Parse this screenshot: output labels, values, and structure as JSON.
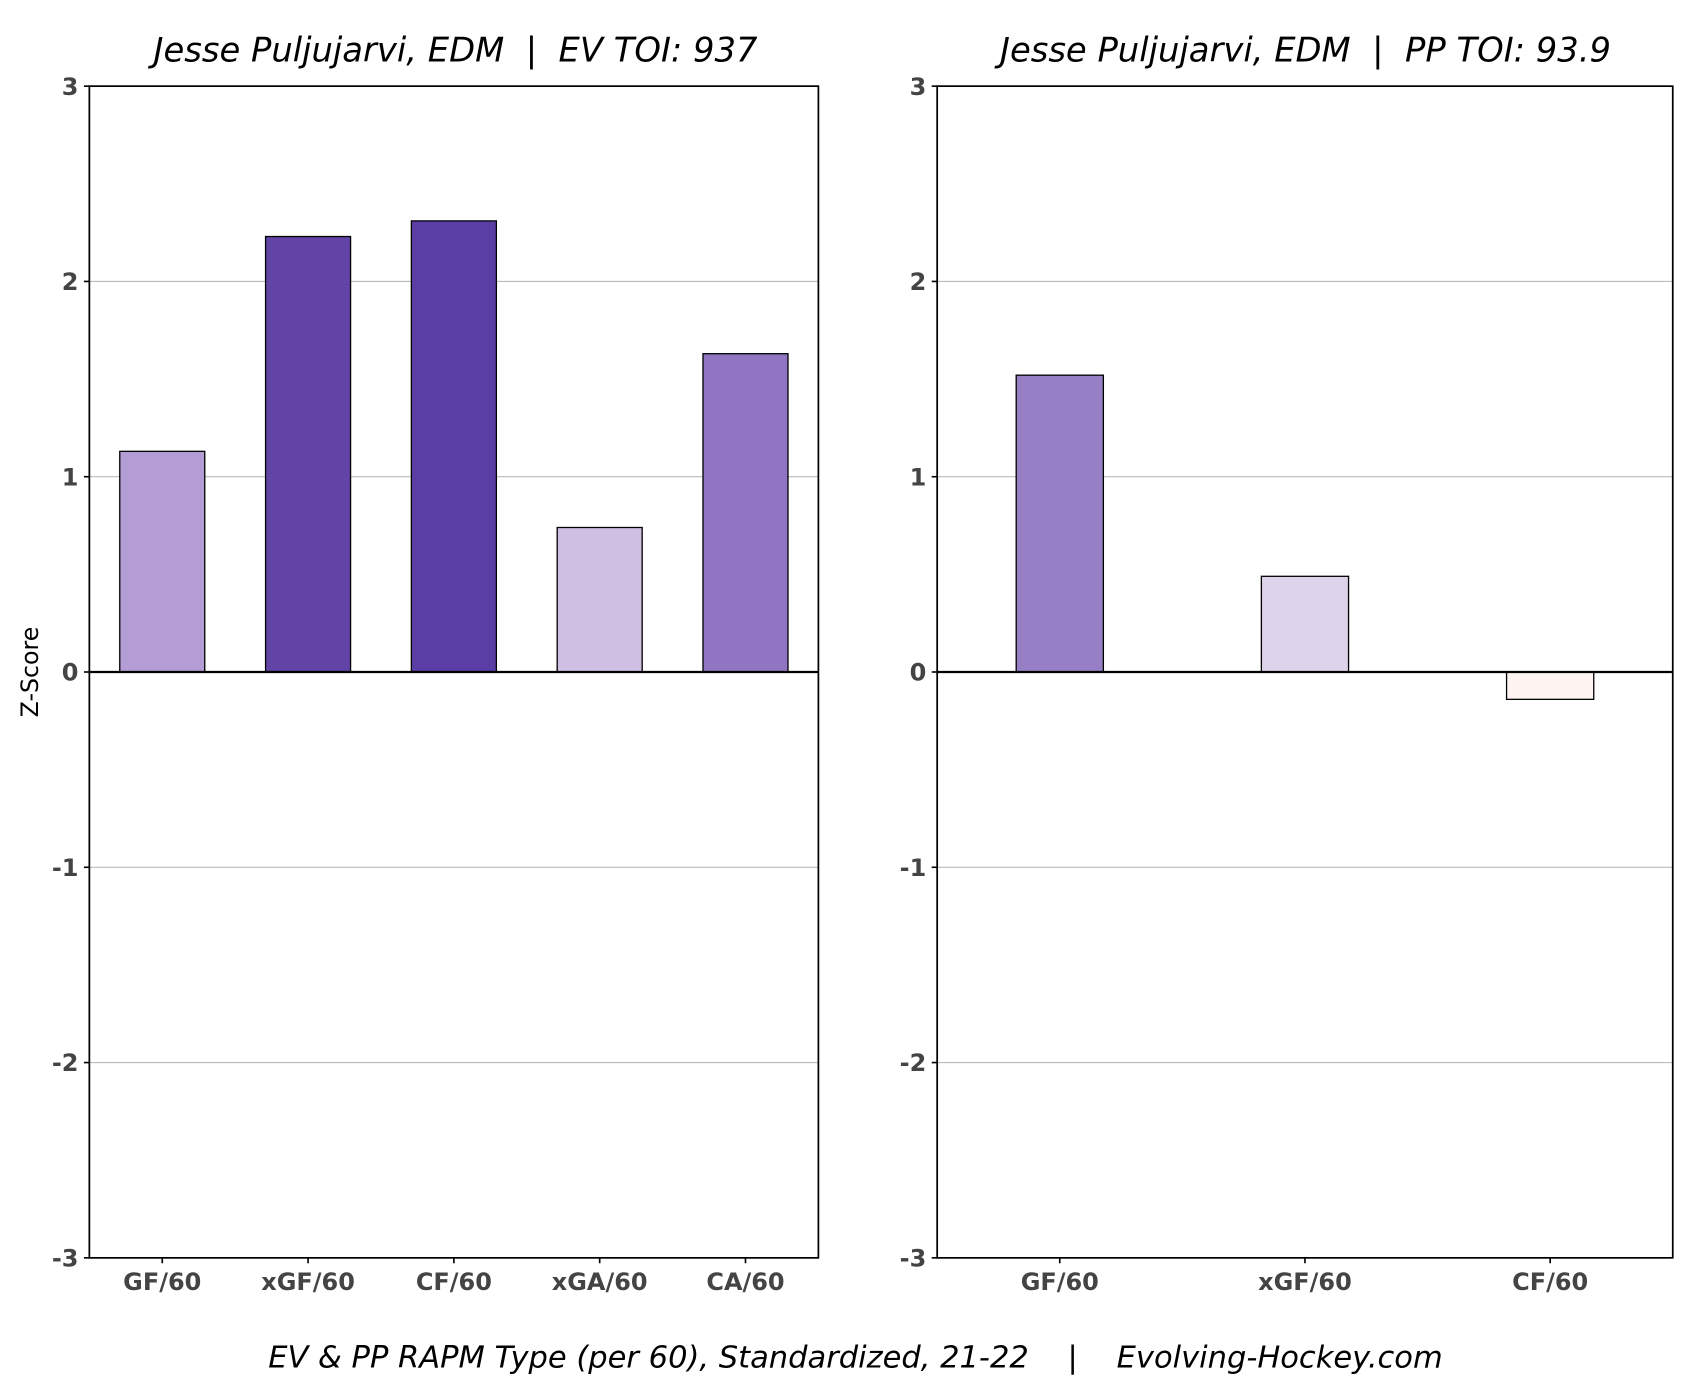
{
  "chart_data": [
    {
      "type": "bar",
      "title": "Jesse Puljujarvi, EDM  |  EV TOI: 937",
      "ylabel": "Z-Score",
      "xlabel": "",
      "ylim": [
        -3,
        3
      ],
      "yticks": [
        "3",
        "2",
        "1",
        "0",
        "-1",
        "-2",
        "-3"
      ],
      "grid": true,
      "categories": [
        "GF/60",
        "xGF/60",
        "CF/60",
        "xGA/60",
        "CA/60"
      ],
      "values": [
        1.13,
        2.23,
        2.31,
        0.74,
        1.63
      ],
      "colors": [
        "#b39dd4",
        "#6243a6",
        "#5b3ea5",
        "#cfbfe2",
        "#8f75c2"
      ]
    },
    {
      "type": "bar",
      "title": "Jesse Puljujarvi, EDM  |  PP TOI: 93.9",
      "xlabel": "",
      "ylim": [
        -3,
        3
      ],
      "yticks": [
        "3",
        "2",
        "1",
        "0",
        "-1",
        "-2",
        "-3"
      ],
      "grid": true,
      "categories": [
        "GF/60",
        "xGF/60",
        "CF/60"
      ],
      "values": [
        1.52,
        0.49,
        -0.14
      ],
      "colors": [
        "#977fc5",
        "#ddd3eb",
        "#fff4f2"
      ]
    }
  ],
  "caption": "EV & PP RAPM Type (per 60), Standardized, 21-22    |    Evolving-Hockey.com"
}
